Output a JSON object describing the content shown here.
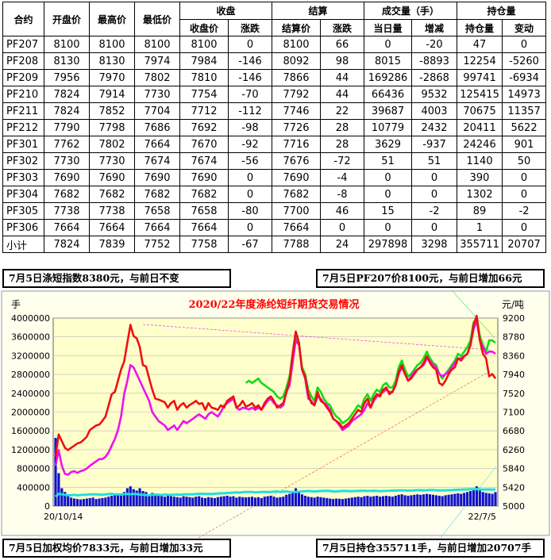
{
  "table": {
    "group_headers": [
      "合约",
      "开盘价",
      "最高价",
      "最低价",
      "收盘",
      "结算",
      "成交量（手）",
      "持仓量"
    ],
    "sub_headers": [
      "收盘价",
      "涨跌",
      "结算价",
      "涨跌",
      "当日量",
      "增减",
      "持仓量",
      "变动"
    ],
    "rows": [
      [
        "PF207",
        "8100",
        "8100",
        "8100",
        "8100",
        "0",
        "8100",
        "66",
        "0",
        "-20",
        "47",
        "0"
      ],
      [
        "PF208",
        "8130",
        "8130",
        "7974",
        "7984",
        "-146",
        "8092",
        "98",
        "8015",
        "-8893",
        "12254",
        "-5260"
      ],
      [
        "PF209",
        "7956",
        "7970",
        "7802",
        "7810",
        "-146",
        "7866",
        "44",
        "169286",
        "-2868",
        "99741",
        "-6934"
      ],
      [
        "PF210",
        "7824",
        "7914",
        "7730",
        "7754",
        "-70",
        "7792",
        "44",
        "66436",
        "9532",
        "125415",
        "14973"
      ],
      [
        "PF211",
        "7824",
        "7852",
        "7704",
        "7712",
        "-112",
        "7746",
        "22",
        "39687",
        "4003",
        "70675",
        "11357"
      ],
      [
        "PF212",
        "7790",
        "7798",
        "7686",
        "7692",
        "-98",
        "7726",
        "28",
        "10779",
        "2432",
        "20411",
        "5622"
      ],
      [
        "PF301",
        "7762",
        "7802",
        "7664",
        "7670",
        "-92",
        "7716",
        "28",
        "3629",
        "-937",
        "24246",
        "901"
      ],
      [
        "PF302",
        "7730",
        "7730",
        "7674",
        "7674",
        "-56",
        "7676",
        "-72",
        "51",
        "51",
        "1140",
        "50"
      ],
      [
        "PF303",
        "7690",
        "7690",
        "7690",
        "7690",
        "0",
        "7690",
        "-4",
        "0",
        "0",
        "390",
        "0"
      ],
      [
        "PF304",
        "7682",
        "7682",
        "7682",
        "7682",
        "0",
        "7682",
        "-8",
        "0",
        "0",
        "1302",
        "0"
      ],
      [
        "PF305",
        "7738",
        "7738",
        "7658",
        "7658",
        "-80",
        "7700",
        "46",
        "15",
        "-2",
        "89",
        "-2"
      ],
      [
        "PF306",
        "7664",
        "7664",
        "7664",
        "7664",
        "0",
        "7664",
        "0",
        "0",
        "0",
        "1",
        "0"
      ],
      [
        "小计",
        "7824",
        "7839",
        "7752",
        "7758",
        "-67",
        "7788",
        "24",
        "297898",
        "3298",
        "355711",
        "20707"
      ]
    ]
  },
  "notes": {
    "top_left": "7月5日涤短指数8380元，与前日不变",
    "top_right": "7月5日PF207价8100元，与前日增加66元",
    "bottom_left": "7月5日加权均价7833元，与前日增加33元",
    "bottom_right": "7月5日持仓355711手，与前日增加20707手"
  },
  "chart_data": {
    "type": "line",
    "title": "2020/22年度涤纶短纤期货交易情况",
    "left_unit": "手",
    "right_unit": "元/吨",
    "left_ticks": [
      "0",
      "400000",
      "800000",
      "1200000",
      "1600000",
      "2000000",
      "2400000",
      "2800000",
      "3200000",
      "3600000",
      "4000000"
    ],
    "right_ticks": [
      "5000",
      "5420",
      "5840",
      "6260",
      "6680",
      "7100",
      "7520",
      "7940",
      "8360",
      "8780",
      "9200"
    ],
    "ylim_left": [
      0,
      4000000
    ],
    "ylim_right": [
      5000,
      9200
    ],
    "x_start_label": "20/10/14",
    "x_end_label": "22/7/5",
    "colors": {
      "red": "#ee1111",
      "magenta": "#ee11ee",
      "green": "#11dd11",
      "cyan": "#22dddd",
      "blue": "#1111cc",
      "background": "#ffffcc",
      "frame": "#ffffee"
    },
    "series": [
      {
        "name": "",
        "color": "red",
        "axis": "right",
        "values": [
          6100,
          6600,
          6450,
          6300,
          6250,
          6300,
          6350,
          6400,
          6420,
          6480,
          6550,
          6700,
          6750,
          6800,
          6820,
          6900,
          7000,
          7250,
          7500,
          7550,
          7800,
          8050,
          8230,
          8650,
          9050,
          8800,
          8750,
          8550,
          8150,
          8120,
          7850,
          7600,
          7400,
          7380,
          7350,
          7320,
          7200,
          7300,
          7350,
          7150,
          7250,
          7300,
          7200,
          7260,
          7300,
          7350,
          7280,
          7300,
          7150,
          7300,
          7200,
          7180,
          7150,
          7250,
          7200,
          7350,
          7400,
          7450,
          7200,
          7250,
          7350,
          7220,
          7250,
          7300,
          7200,
          7250,
          7150,
          7300,
          7400,
          7450,
          7350,
          7200,
          7250,
          7300,
          7550,
          7800,
          8400,
          8900,
          8650,
          8050,
          7900,
          7500,
          7300,
          7250,
          7550,
          7350,
          7300,
          7200,
          7100,
          6950,
          6900,
          6850,
          6750,
          6800,
          6850,
          6950,
          7050,
          7150,
          7100,
          7300,
          7400,
          7200,
          7400,
          7500,
          7450,
          7600,
          7650,
          7500,
          7550,
          7700,
          8000,
          8150,
          7950,
          7800,
          7850,
          7950,
          8050,
          8100,
          8200,
          8350,
          8200,
          8100,
          8050,
          7750,
          7700,
          7800,
          7950,
          8050,
          8100,
          8300,
          8250,
          8350,
          8400,
          8600,
          9050,
          9250,
          8700,
          8400,
          8300,
          7900,
          7950,
          7850
        ]
      },
      {
        "name": "",
        "color": "magenta",
        "axis": "right",
        "values": [
          5900,
          6250,
          5900,
          5720,
          5700,
          5760,
          5780,
          5740,
          5780,
          5800,
          5840,
          5900,
          5950,
          6000,
          6050,
          6050,
          6100,
          6200,
          6350,
          6500,
          6700,
          7000,
          7500,
          7800,
          8150,
          8100,
          7950,
          7800,
          7650,
          7500,
          7350,
          7100,
          7000,
          6900,
          6850,
          6800,
          6700,
          6750,
          6800,
          6700,
          6800,
          6900,
          6850,
          6900,
          6950,
          7000,
          7050,
          7000,
          6950,
          7050,
          7100,
          7050,
          7000,
          7100,
          7250,
          7300,
          7350,
          7400,
          7200,
          7150,
          7200,
          7180,
          7160,
          7200,
          7150,
          7200,
          7150,
          7250,
          7350,
          7400,
          7300,
          7250,
          7200,
          7250,
          7550,
          7700,
          8200,
          8700,
          8600,
          8050,
          7850,
          7400,
          7350,
          7250,
          7450,
          7400,
          7300,
          7250,
          7150,
          6950,
          6900,
          6800,
          6700,
          6750,
          6800,
          6900,
          6950,
          7000,
          7050,
          7150,
          7300,
          7200,
          7350,
          7450,
          7500,
          7550,
          7600,
          7550,
          7550,
          7700,
          7950,
          8100,
          7950,
          7800,
          7900,
          8000,
          8050,
          8100,
          8150,
          8300,
          8250,
          8150,
          8100,
          7950,
          7900,
          7950,
          8000,
          8100,
          8200,
          8300,
          8300,
          8350,
          8400,
          8600,
          8950,
          9150,
          8700,
          8550,
          8400,
          8450,
          8450,
          8400
        ]
      },
      {
        "name": "",
        "color": "green",
        "axis": "right",
        "values": [
          null,
          null,
          null,
          null,
          null,
          null,
          null,
          null,
          null,
          null,
          null,
          null,
          null,
          null,
          null,
          null,
          null,
          null,
          null,
          null,
          null,
          null,
          null,
          null,
          null,
          null,
          null,
          null,
          null,
          null,
          null,
          null,
          null,
          null,
          null,
          null,
          null,
          null,
          null,
          null,
          null,
          null,
          null,
          null,
          null,
          null,
          null,
          null,
          null,
          null,
          null,
          null,
          null,
          null,
          null,
          null,
          null,
          null,
          null,
          null,
          null,
          7750,
          7800,
          7750,
          7800,
          7850,
          7750,
          7700,
          7650,
          7600,
          7550,
          7450,
          7400,
          7450,
          7650,
          7900,
          8400,
          8800,
          8650,
          8100,
          7950,
          7600,
          7450,
          7350,
          7650,
          7550,
          7400,
          7300,
          7250,
          7100,
          7000,
          6950,
          6850,
          6900,
          6950,
          7050,
          7150,
          7250,
          7200,
          7400,
          7500,
          7350,
          7500,
          7600,
          7550,
          7700,
          7750,
          7650,
          7650,
          7800,
          8100,
          8250,
          8050,
          7900,
          7950,
          8050,
          8150,
          8200,
          8300,
          8450,
          8300,
          8200,
          8150,
          7950,
          7850,
          7950,
          8050,
          8150,
          8250,
          8400,
          8350,
          8450,
          8550,
          8700,
          9100,
          9200,
          8800,
          8600,
          8450,
          8700,
          8700,
          8650
        ]
      },
      {
        "name": "",
        "color": "cyan",
        "axis": "left",
        "values": [
          200000,
          260000,
          250000,
          240000,
          230000,
          230000,
          240000,
          230000,
          235000,
          240000,
          240000,
          250000,
          250000,
          250000,
          245000,
          240000,
          250000,
          255000,
          260000,
          250000,
          250000,
          245000,
          255000,
          260000,
          250000,
          260000,
          255000,
          245000,
          240000,
          235000,
          230000,
          240000,
          245000,
          240000,
          235000,
          245000,
          240000,
          238000,
          242000,
          245000,
          240000,
          250000,
          248000,
          252000,
          250000,
          255000,
          260000,
          262000,
          258000,
          260000,
          255000,
          262000,
          268000,
          270000,
          272000,
          278000,
          280000,
          285000,
          290000,
          285000,
          295000,
          300000,
          300000,
          298000,
          292000,
          295000,
          300000,
          302000,
          298000,
          300000,
          305000,
          310000,
          300000,
          305000,
          310000,
          300000,
          300000,
          302000,
          305000,
          310000,
          315000,
          320000,
          315000,
          310000,
          318000,
          320000,
          322000,
          325000,
          320000,
          310000,
          312000,
          318000,
          320000,
          322000,
          318000,
          315000,
          320000,
          322000,
          325000,
          328000,
          320000,
          322000,
          325000,
          322000,
          318000,
          320000,
          322000,
          325000,
          330000,
          328000,
          332000,
          335000,
          330000,
          328000,
          330000,
          332000,
          338000,
          340000,
          335000,
          338000,
          342000,
          340000,
          336000,
          330000,
          332000,
          335000,
          338000,
          340000,
          345000,
          348000,
          350000,
          352000,
          355000,
          360000,
          360000,
          362000,
          355000,
          350000,
          352000,
          355000,
          350000,
          355711
        ]
      },
      {
        "name": "",
        "color": "blue",
        "axis": "left",
        "values": [
          1450000,
          700000,
          380000,
          300000,
          220000,
          180000,
          160000,
          150000,
          140000,
          150000,
          160000,
          170000,
          180000,
          150000,
          160000,
          170000,
          180000,
          200000,
          220000,
          230000,
          250000,
          260000,
          300000,
          380000,
          420000,
          360000,
          330000,
          380000,
          320000,
          300000,
          250000,
          280000,
          240000,
          220000,
          230000,
          200000,
          220000,
          210000,
          200000,
          190000,
          180000,
          210000,
          200000,
          190000,
          180000,
          200000,
          210000,
          180000,
          170000,
          190000,
          180000,
          170000,
          190000,
          200000,
          210000,
          220000,
          200000,
          210000,
          180000,
          200000,
          190000,
          185000,
          190000,
          200000,
          180000,
          190000,
          170000,
          200000,
          210000,
          220000,
          200000,
          180000,
          190000,
          200000,
          240000,
          260000,
          320000,
          380000,
          300000,
          250000,
          220000,
          200000,
          190000,
          180000,
          200000,
          190000,
          180000,
          170000,
          160000,
          150000,
          160000,
          155000,
          150000,
          160000,
          170000,
          180000,
          190000,
          200000,
          190000,
          210000,
          220000,
          200000,
          210000,
          220000,
          200000,
          210000,
          220000,
          210000,
          200000,
          220000,
          240000,
          250000,
          230000,
          220000,
          230000,
          240000,
          250000,
          240000,
          250000,
          260000,
          250000,
          240000,
          230000,
          220000,
          210000,
          230000,
          240000,
          250000,
          260000,
          270000,
          260000,
          280000,
          300000,
          320000,
          380000,
          420000,
          330000,
          300000,
          280000,
          270000,
          260000,
          297898
        ]
      }
    ]
  }
}
